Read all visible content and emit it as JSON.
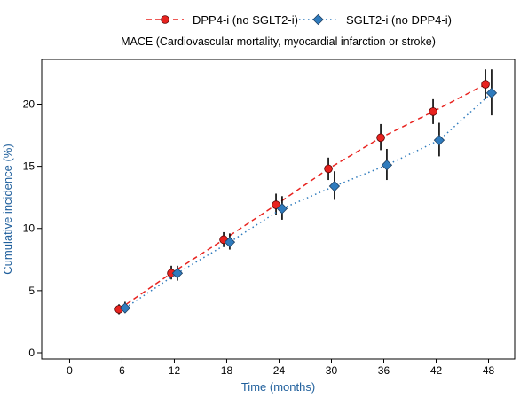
{
  "chart_data": {
    "type": "line",
    "title": "MACE (Cardiovascular mortality, myocardial infarction or stroke)",
    "xlabel": "Time (months)",
    "ylabel": "Cumulative incidence (%)",
    "x_ticks": [
      0,
      6,
      12,
      18,
      24,
      30,
      36,
      42,
      48
    ],
    "y_ticks": [
      0,
      5,
      10,
      15,
      20
    ],
    "xlim": [
      -3.2,
      51
    ],
    "ylim": [
      -0.5,
      23.6
    ],
    "grid": false,
    "legend_position": "top",
    "series": [
      {
        "name": "DPP4-i (no SGLT2-i)",
        "color": "#e8231f",
        "marker": "circle",
        "line_style": "dashed",
        "x": [
          6,
          12,
          18,
          24,
          30,
          36,
          42,
          48
        ],
        "y": [
          3.5,
          6.4,
          9.1,
          11.9,
          14.8,
          17.3,
          19.4,
          21.6
        ],
        "ci_lower": [
          3.1,
          5.9,
          8.5,
          11.1,
          13.9,
          16.3,
          18.4,
          20.4
        ],
        "ci_upper": [
          3.9,
          7.0,
          9.7,
          12.8,
          15.7,
          18.4,
          20.4,
          22.8
        ]
      },
      {
        "name": "SGLT2-i (no DPP4-i)",
        "color": "#2f7bbd",
        "marker": "diamond",
        "line_style": "dotted",
        "x": [
          6,
          12,
          18,
          24,
          30,
          36,
          42,
          48
        ],
        "y": [
          3.6,
          6.4,
          8.9,
          11.6,
          13.4,
          15.1,
          17.1,
          20.9
        ],
        "ci_lower": [
          3.2,
          5.8,
          8.3,
          10.7,
          12.3,
          13.9,
          15.8,
          19.1
        ],
        "ci_upper": [
          4.1,
          7.0,
          9.6,
          12.6,
          14.6,
          16.4,
          18.5,
          22.8
        ]
      }
    ]
  }
}
